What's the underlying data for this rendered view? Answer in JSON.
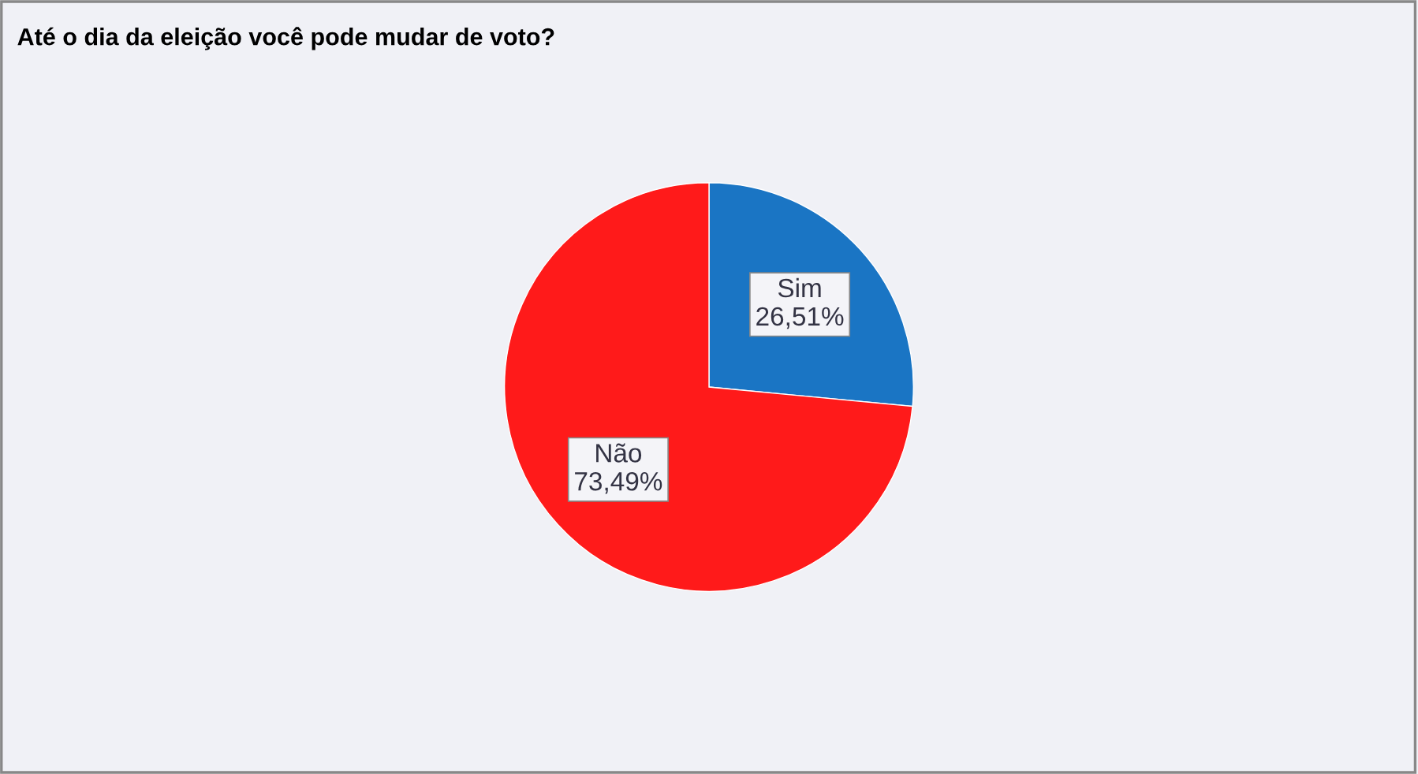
{
  "chart_data": {
    "type": "pie",
    "title": "Até o dia da eleição você pode mudar de voto?",
    "categories": [
      "Sim",
      "Não"
    ],
    "values": [
      26.51,
      73.49
    ],
    "colors": [
      "#1a75c4",
      "#ff1a1a"
    ],
    "value_labels": [
      "26,51%",
      "73,49%"
    ],
    "legend": false
  }
}
